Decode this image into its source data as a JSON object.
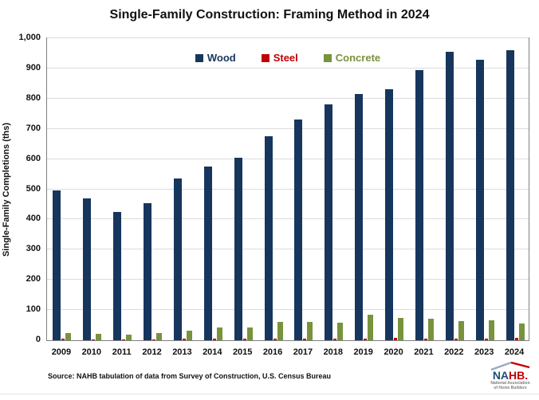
{
  "title": "Single-Family Construction: Framing Method in 2024",
  "source_note": "Source: NAHB tabulation of data from Survey of Construction, U.S. Census Bureau",
  "colors": {
    "wood": "#17365D",
    "steel": "#C00000",
    "concrete": "#77933C",
    "gridline": "#DCDCDC",
    "plot_border": "#7F7F7F"
  },
  "logo": {
    "name_left": "NA",
    "name_right": "HB",
    "dot": ".",
    "subtext_line1": "National Association",
    "subtext_line2": "of Home Builders"
  },
  "chart_data": {
    "type": "bar",
    "title": "Single-Family Construction: Framing Method in 2024",
    "ylabel": "Single-Family Completions (ths)",
    "xlabel": "",
    "ylim": [
      0,
      1000
    ],
    "ytick_step": 100,
    "ytick_labels": [
      "0",
      "100",
      "200",
      "300",
      "400",
      "500",
      "600",
      "700",
      "800",
      "900",
      "1,000"
    ],
    "grid": "horizontal",
    "legend_position": "top-center-inside",
    "categories": [
      "2009",
      "2010",
      "2011",
      "2012",
      "2013",
      "2014",
      "2015",
      "2016",
      "2017",
      "2018",
      "2019",
      "2020",
      "2021",
      "2022",
      "2023",
      "2024"
    ],
    "series": [
      {
        "name": "Wood",
        "color_key": "wood",
        "values": [
          495,
          470,
          425,
          455,
          535,
          575,
          605,
          675,
          730,
          780,
          815,
          830,
          895,
          955,
          930,
          960
        ]
      },
      {
        "name": "Steel",
        "color_key": "steel",
        "values": [
          4,
          3,
          3,
          3,
          4,
          4,
          4,
          5,
          5,
          5,
          6,
          8,
          5,
          6,
          6,
          7
        ]
      },
      {
        "name": "Concrete",
        "color_key": "concrete",
        "values": [
          25,
          20,
          18,
          25,
          32,
          42,
          43,
          60,
          60,
          58,
          85,
          73,
          70,
          63,
          65,
          55
        ]
      }
    ]
  }
}
